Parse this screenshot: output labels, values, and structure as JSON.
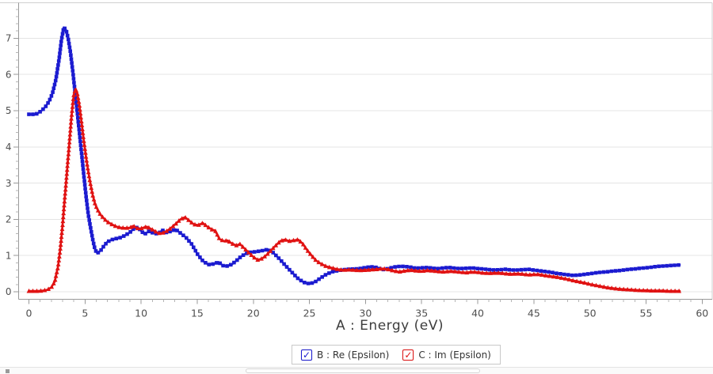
{
  "chart_data": {
    "type": "line",
    "title": "",
    "xlabel": "A : Energy (eV)",
    "ylabel": "",
    "xlim": [
      -1,
      61
    ],
    "ylim": [
      -0.2,
      8.0
    ],
    "x_major_ticks": [
      0,
      5,
      10,
      15,
      20,
      25,
      30,
      35,
      40,
      45,
      50,
      55,
      60
    ],
    "x_minor_step": 1,
    "y_major_ticks": [
      0,
      1,
      2,
      3,
      4,
      5,
      6,
      7
    ],
    "y_minor_step": 0.2,
    "grid": "horizontal-only",
    "legend_position": "bottom-center",
    "series": [
      {
        "name": "B : Re (Epsilon)",
        "color": "#1b1bd0",
        "marker": "square",
        "points": [
          [
            0,
            4.9
          ],
          [
            0.3,
            4.9
          ],
          [
            0.6,
            4.9
          ],
          [
            0.9,
            4.95
          ],
          [
            1.2,
            5.02
          ],
          [
            1.5,
            5.12
          ],
          [
            1.8,
            5.26
          ],
          [
            2.1,
            5.48
          ],
          [
            2.4,
            5.85
          ],
          [
            2.7,
            6.45
          ],
          [
            2.9,
            6.95
          ],
          [
            3.1,
            7.3
          ],
          [
            3.3,
            7.24
          ],
          [
            3.5,
            7.0
          ],
          [
            3.7,
            6.62
          ],
          [
            3.9,
            6.12
          ],
          [
            4.1,
            5.55
          ],
          [
            4.3,
            4.98
          ],
          [
            4.5,
            4.4
          ],
          [
            4.7,
            3.8
          ],
          [
            4.9,
            3.2
          ],
          [
            5.1,
            2.62
          ],
          [
            5.3,
            2.12
          ],
          [
            5.5,
            1.76
          ],
          [
            5.7,
            1.42
          ],
          [
            5.9,
            1.16
          ],
          [
            6.1,
            1.06
          ],
          [
            6.4,
            1.14
          ],
          [
            6.7,
            1.27
          ],
          [
            7,
            1.38
          ],
          [
            7.4,
            1.44
          ],
          [
            7.8,
            1.47
          ],
          [
            8.2,
            1.5
          ],
          [
            8.6,
            1.56
          ],
          [
            9,
            1.64
          ],
          [
            9.4,
            1.76
          ],
          [
            9.7,
            1.78
          ],
          [
            10,
            1.68
          ],
          [
            10.3,
            1.59
          ],
          [
            10.7,
            1.67
          ],
          [
            11.1,
            1.62
          ],
          [
            11.5,
            1.6
          ],
          [
            11.9,
            1.7
          ],
          [
            12.3,
            1.63
          ],
          [
            12.7,
            1.68
          ],
          [
            13.1,
            1.72
          ],
          [
            13.5,
            1.62
          ],
          [
            14,
            1.5
          ],
          [
            14.5,
            1.32
          ],
          [
            15,
            1.05
          ],
          [
            15.5,
            0.85
          ],
          [
            16,
            0.75
          ],
          [
            16.5,
            0.77
          ],
          [
            16.9,
            0.82
          ],
          [
            17.3,
            0.72
          ],
          [
            17.7,
            0.71
          ],
          [
            18.1,
            0.76
          ],
          [
            18.5,
            0.86
          ],
          [
            18.9,
            0.97
          ],
          [
            19.3,
            1.05
          ],
          [
            19.7,
            1.09
          ],
          [
            20.1,
            1.1
          ],
          [
            20.5,
            1.12
          ],
          [
            20.9,
            1.14
          ],
          [
            21.3,
            1.17
          ],
          [
            21.7,
            1.1
          ],
          [
            22.1,
            0.98
          ],
          [
            22.5,
            0.85
          ],
          [
            23,
            0.68
          ],
          [
            23.5,
            0.52
          ],
          [
            24,
            0.36
          ],
          [
            24.5,
            0.26
          ],
          [
            25,
            0.22
          ],
          [
            25.5,
            0.27
          ],
          [
            26,
            0.38
          ],
          [
            26.5,
            0.48
          ],
          [
            27,
            0.55
          ],
          [
            27.5,
            0.58
          ],
          [
            28,
            0.61
          ],
          [
            28.5,
            0.62
          ],
          [
            29,
            0.63
          ],
          [
            29.5,
            0.64
          ],
          [
            30,
            0.67
          ],
          [
            30.5,
            0.69
          ],
          [
            31,
            0.67
          ],
          [
            31.5,
            0.61
          ],
          [
            32,
            0.64
          ],
          [
            32.5,
            0.68
          ],
          [
            33,
            0.7
          ],
          [
            33.5,
            0.7
          ],
          [
            34,
            0.68
          ],
          [
            34.5,
            0.65
          ],
          [
            35,
            0.66
          ],
          [
            35.5,
            0.67
          ],
          [
            36,
            0.65
          ],
          [
            36.5,
            0.64
          ],
          [
            37,
            0.66
          ],
          [
            37.5,
            0.67
          ],
          [
            38,
            0.65
          ],
          [
            38.5,
            0.64
          ],
          [
            39,
            0.65
          ],
          [
            39.5,
            0.66
          ],
          [
            40,
            0.64
          ],
          [
            40.5,
            0.63
          ],
          [
            41,
            0.61
          ],
          [
            41.5,
            0.6
          ],
          [
            42,
            0.61
          ],
          [
            42.5,
            0.62
          ],
          [
            43,
            0.6
          ],
          [
            43.5,
            0.6
          ],
          [
            44,
            0.61
          ],
          [
            44.5,
            0.62
          ],
          [
            45,
            0.6
          ],
          [
            45.5,
            0.58
          ],
          [
            46,
            0.56
          ],
          [
            46.5,
            0.54
          ],
          [
            47,
            0.51
          ],
          [
            47.5,
            0.49
          ],
          [
            48,
            0.47
          ],
          [
            48.5,
            0.45
          ],
          [
            49,
            0.46
          ],
          [
            49.5,
            0.48
          ],
          [
            50,
            0.5
          ],
          [
            50.5,
            0.52
          ],
          [
            51,
            0.54
          ],
          [
            51.5,
            0.55
          ],
          [
            52,
            0.57
          ],
          [
            52.5,
            0.58
          ],
          [
            53,
            0.6
          ],
          [
            53.5,
            0.62
          ],
          [
            54,
            0.63
          ],
          [
            54.5,
            0.65
          ],
          [
            55,
            0.66
          ],
          [
            55.5,
            0.68
          ],
          [
            56,
            0.7
          ],
          [
            56.5,
            0.71
          ],
          [
            57,
            0.72
          ],
          [
            57.5,
            0.73
          ],
          [
            58,
            0.74
          ]
        ]
      },
      {
        "name": "C : Im (Epsilon)",
        "color": "#e01212",
        "marker": "triangle",
        "points": [
          [
            0,
            0.02
          ],
          [
            0.4,
            0.02
          ],
          [
            0.8,
            0.02
          ],
          [
            1.2,
            0.03
          ],
          [
            1.6,
            0.05
          ],
          [
            2,
            0.12
          ],
          [
            2.3,
            0.28
          ],
          [
            2.6,
            0.7
          ],
          [
            2.8,
            1.2
          ],
          [
            3,
            1.85
          ],
          [
            3.2,
            2.6
          ],
          [
            3.4,
            3.35
          ],
          [
            3.6,
            4.1
          ],
          [
            3.8,
            4.85
          ],
          [
            4,
            5.45
          ],
          [
            4.15,
            5.6
          ],
          [
            4.3,
            5.5
          ],
          [
            4.5,
            5.15
          ],
          [
            4.7,
            4.65
          ],
          [
            4.9,
            4.15
          ],
          [
            5.1,
            3.7
          ],
          [
            5.3,
            3.3
          ],
          [
            5.5,
            2.95
          ],
          [
            5.7,
            2.65
          ],
          [
            5.9,
            2.42
          ],
          [
            6.1,
            2.28
          ],
          [
            6.4,
            2.12
          ],
          [
            6.7,
            2.02
          ],
          [
            7,
            1.93
          ],
          [
            7.4,
            1.86
          ],
          [
            7.8,
            1.8
          ],
          [
            8.2,
            1.77
          ],
          [
            8.6,
            1.76
          ],
          [
            9,
            1.77
          ],
          [
            9.3,
            1.82
          ],
          [
            9.6,
            1.76
          ],
          [
            9.9,
            1.74
          ],
          [
            10.2,
            1.77
          ],
          [
            10.5,
            1.8
          ],
          [
            10.8,
            1.75
          ],
          [
            11.1,
            1.7
          ],
          [
            11.5,
            1.62
          ],
          [
            11.9,
            1.62
          ],
          [
            12.3,
            1.68
          ],
          [
            12.7,
            1.77
          ],
          [
            13.1,
            1.88
          ],
          [
            13.5,
            2.0
          ],
          [
            13.9,
            2.06
          ],
          [
            14.3,
            1.96
          ],
          [
            14.7,
            1.86
          ],
          [
            15.1,
            1.84
          ],
          [
            15.5,
            1.9
          ],
          [
            15.9,
            1.8
          ],
          [
            16.3,
            1.72
          ],
          [
            16.6,
            1.69
          ],
          [
            17,
            1.45
          ],
          [
            17.4,
            1.4
          ],
          [
            17.7,
            1.42
          ],
          [
            18.1,
            1.33
          ],
          [
            18.5,
            1.28
          ],
          [
            18.8,
            1.32
          ],
          [
            19.2,
            1.2
          ],
          [
            19.6,
            1.08
          ],
          [
            20,
            0.96
          ],
          [
            20.4,
            0.88
          ],
          [
            20.8,
            0.92
          ],
          [
            21.2,
            1.02
          ],
          [
            21.6,
            1.15
          ],
          [
            22,
            1.28
          ],
          [
            22.4,
            1.4
          ],
          [
            22.8,
            1.44
          ],
          [
            23.2,
            1.4
          ],
          [
            23.6,
            1.42
          ],
          [
            24,
            1.44
          ],
          [
            24.4,
            1.33
          ],
          [
            24.8,
            1.15
          ],
          [
            25.2,
            1.0
          ],
          [
            25.6,
            0.86
          ],
          [
            26,
            0.78
          ],
          [
            26.5,
            0.7
          ],
          [
            27,
            0.66
          ],
          [
            27.5,
            0.62
          ],
          [
            28,
            0.6
          ],
          [
            28.5,
            0.61
          ],
          [
            29,
            0.6
          ],
          [
            29.5,
            0.59
          ],
          [
            30,
            0.6
          ],
          [
            30.5,
            0.61
          ],
          [
            31,
            0.62
          ],
          [
            31.5,
            0.64
          ],
          [
            32,
            0.62
          ],
          [
            32.5,
            0.58
          ],
          [
            33,
            0.55
          ],
          [
            33.5,
            0.58
          ],
          [
            34,
            0.6
          ],
          [
            34.5,
            0.58
          ],
          [
            35,
            0.57
          ],
          [
            35.5,
            0.59
          ],
          [
            36,
            0.58
          ],
          [
            36.5,
            0.56
          ],
          [
            37,
            0.55
          ],
          [
            37.5,
            0.57
          ],
          [
            38,
            0.56
          ],
          [
            38.5,
            0.54
          ],
          [
            39,
            0.53
          ],
          [
            39.5,
            0.55
          ],
          [
            40,
            0.54
          ],
          [
            40.5,
            0.52
          ],
          [
            41,
            0.51
          ],
          [
            41.5,
            0.52
          ],
          [
            42,
            0.52
          ],
          [
            42.5,
            0.5
          ],
          [
            43,
            0.49
          ],
          [
            43.5,
            0.5
          ],
          [
            44,
            0.49
          ],
          [
            44.5,
            0.47
          ],
          [
            45,
            0.48
          ],
          [
            45.5,
            0.48
          ],
          [
            46,
            0.45
          ],
          [
            46.5,
            0.43
          ],
          [
            47,
            0.41
          ],
          [
            47.5,
            0.38
          ],
          [
            48,
            0.35
          ],
          [
            48.5,
            0.31
          ],
          [
            49,
            0.28
          ],
          [
            49.5,
            0.25
          ],
          [
            50,
            0.21
          ],
          [
            50.5,
            0.18
          ],
          [
            51,
            0.15
          ],
          [
            51.5,
            0.12
          ],
          [
            52,
            0.1
          ],
          [
            52.5,
            0.08
          ],
          [
            53,
            0.07
          ],
          [
            53.5,
            0.06
          ],
          [
            54,
            0.05
          ],
          [
            54.5,
            0.04
          ],
          [
            55,
            0.04
          ],
          [
            55.5,
            0.03
          ],
          [
            56,
            0.03
          ],
          [
            56.5,
            0.03
          ],
          [
            57,
            0.02
          ],
          [
            57.5,
            0.02
          ],
          [
            58,
            0.02
          ]
        ]
      }
    ]
  },
  "legend": {
    "check_glyph": "✓",
    "items": [
      {
        "label": "B : Re (Epsilon)",
        "checked": true,
        "color": "#1b1bd0"
      },
      {
        "label": "C : Im (Epsilon)",
        "checked": true,
        "color": "#e01212"
      }
    ]
  },
  "colors": {
    "grid": "#e4e4e4",
    "axis": "#999999",
    "frame_light": "#cfcfcf",
    "tick_label": "#4f4f4f",
    "axis_title": "#3d3d3d"
  }
}
